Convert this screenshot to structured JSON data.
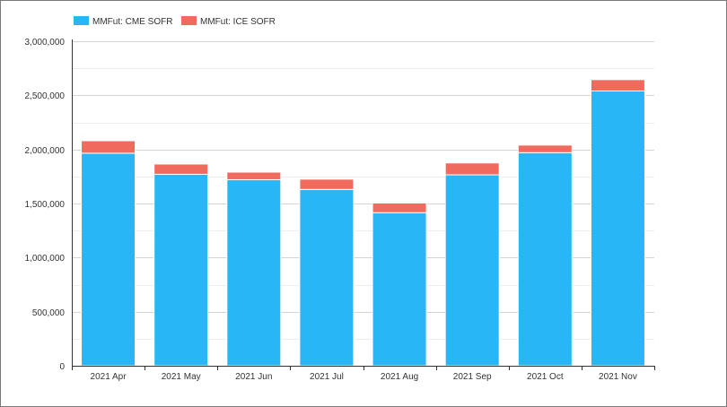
{
  "chart_data": {
    "type": "bar",
    "stacked": true,
    "categories": [
      "2021 Apr",
      "2021 May",
      "2021 Jun",
      "2021 Jul",
      "2021 Aug",
      "2021 Sep",
      "2021 Oct",
      "2021 Nov"
    ],
    "series": [
      {
        "name": "MMFut: CME SOFR",
        "color": "#29b6f6",
        "values": [
          1965000,
          1770000,
          1720000,
          1630000,
          1415000,
          1765000,
          1970000,
          2540000
        ]
      },
      {
        "name": "MMFut: ICE SOFR",
        "color": "#f06b5d",
        "values": [
          115000,
          95000,
          70000,
          95000,
          90000,
          110000,
          70000,
          105000
        ]
      }
    ],
    "ylim": [
      0,
      3000000
    ],
    "yticks": [
      0,
      500000,
      1000000,
      1500000,
      2000000,
      2500000,
      3000000
    ],
    "ytick_labels": [
      "0",
      "500,000",
      "1,000,000",
      "1,500,000",
      "2,000,000",
      "2,500,000",
      "3,000,000"
    ],
    "grid": true,
    "legend_position": "top-left",
    "title": "",
    "xlabel": "",
    "ylabel": ""
  }
}
